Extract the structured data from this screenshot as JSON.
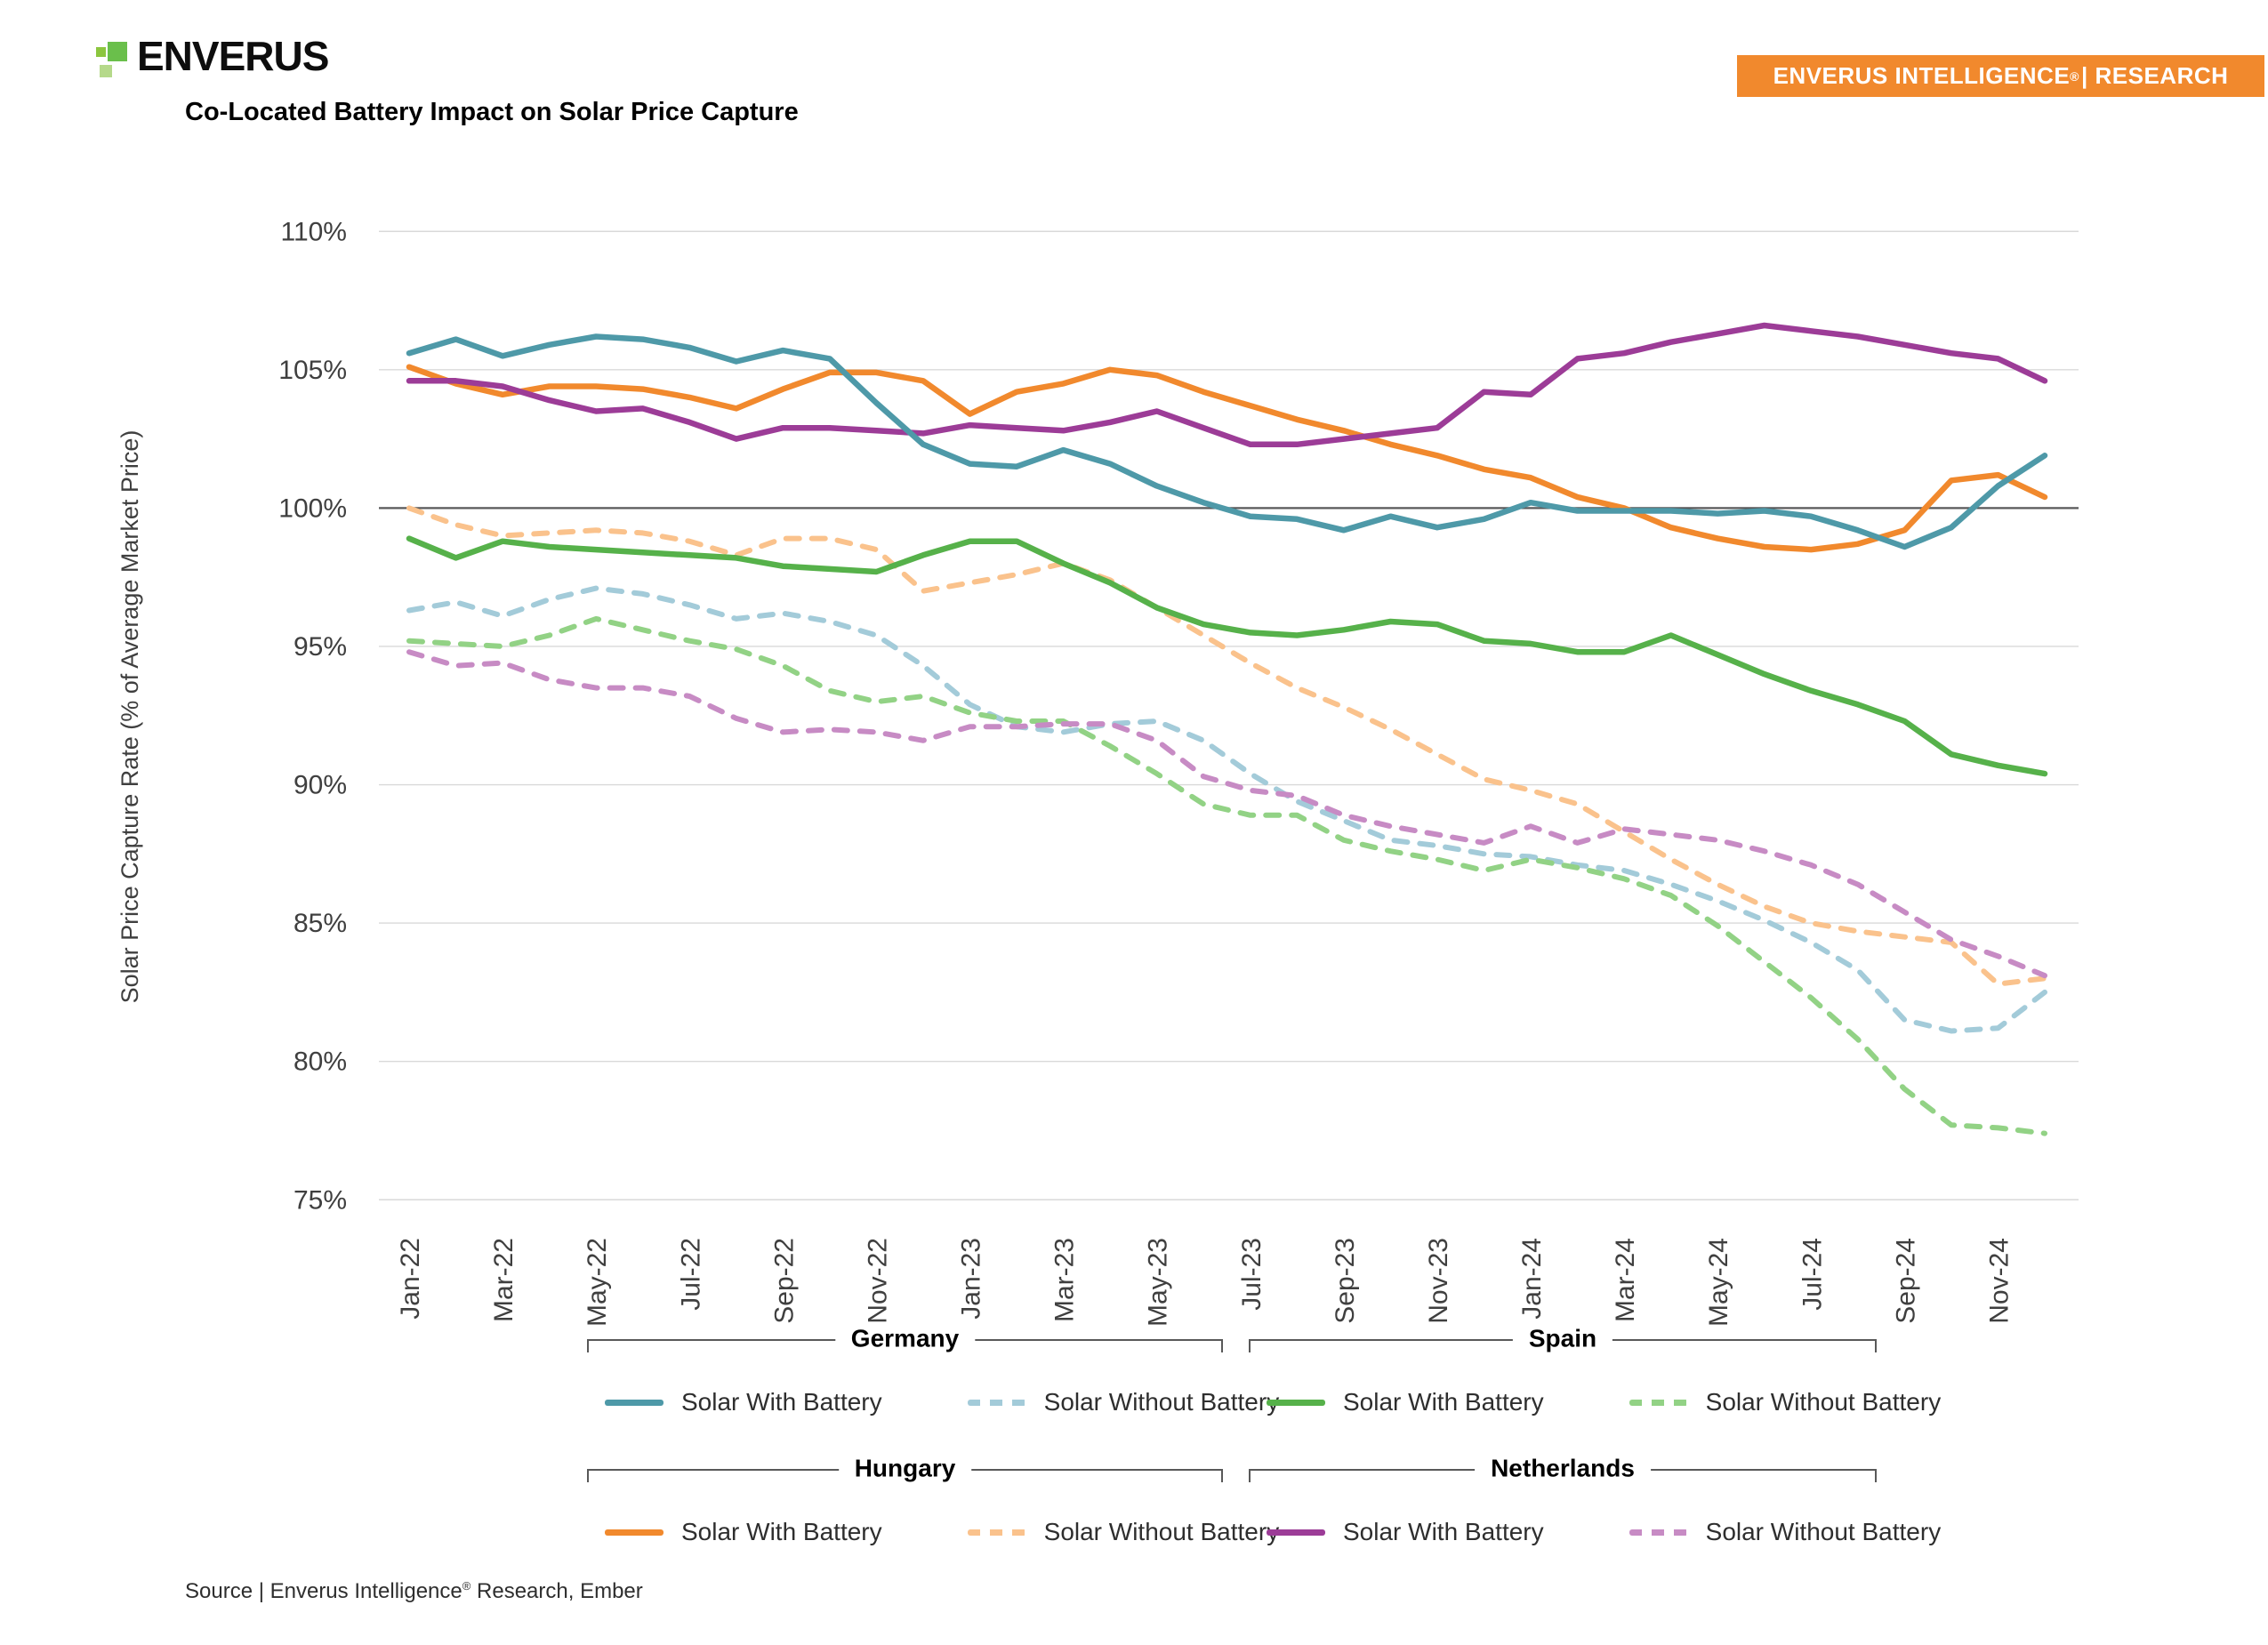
{
  "header": {
    "logo_text": "ENVERUS",
    "badge": {
      "text_main": "ENVERUS INTELLIGENCE",
      "text_reg": "®",
      "text_suffix": " | RESEARCH",
      "bg_color": "#F1892D"
    }
  },
  "chart_data": {
    "type": "line",
    "title": "Co-Located Battery Impact on Solar Price Capture",
    "xlabel": "",
    "ylabel": "Solar Price Capture Rate (% of Average Market Price)",
    "ylim": [
      75,
      110
    ],
    "y_ticks": [
      110,
      105,
      100,
      95,
      90,
      85,
      80,
      75
    ],
    "y_tick_suffix": "%",
    "grid": true,
    "baseline_value": 100,
    "legend_position": "bottom",
    "x_tick_step": 2,
    "x": [
      "Jan-22",
      "Feb-22",
      "Mar-22",
      "Apr-22",
      "May-22",
      "Jun-22",
      "Jul-22",
      "Aug-22",
      "Sep-22",
      "Oct-22",
      "Nov-22",
      "Dec-22",
      "Jan-23",
      "Feb-23",
      "Mar-23",
      "Apr-23",
      "May-23",
      "Jun-23",
      "Jul-23",
      "Aug-23",
      "Sep-23",
      "Oct-23",
      "Nov-23",
      "Dec-23",
      "Jan-24",
      "Feb-24",
      "Mar-24",
      "Apr-24",
      "May-24",
      "Jun-24",
      "Jul-24",
      "Aug-24",
      "Sep-24",
      "Oct-24",
      "Nov-24",
      "Dec-24"
    ],
    "series": [
      {
        "name": "Germany Solar With Battery",
        "country": "Germany",
        "dash": false,
        "color": "#4E99A8",
        "values": [
          105.6,
          106.1,
          105.5,
          105.9,
          106.2,
          106.1,
          105.8,
          105.3,
          105.7,
          105.4,
          103.8,
          102.3,
          101.6,
          101.5,
          102.1,
          101.6,
          100.8,
          100.2,
          99.7,
          99.6,
          99.2,
          99.7,
          99.3,
          99.6,
          100.2,
          99.9,
          99.9,
          99.9,
          99.8,
          99.9,
          99.7,
          99.2,
          98.6,
          99.3,
          100.8,
          101.9
        ]
      },
      {
        "name": "Germany Solar Without Battery",
        "country": "Germany",
        "dash": true,
        "color": "#A3CBD9",
        "values": [
          96.3,
          96.6,
          96.1,
          96.7,
          97.1,
          96.9,
          96.5,
          96.0,
          96.2,
          95.9,
          95.4,
          94.3,
          92.9,
          92.1,
          91.9,
          92.2,
          92.3,
          91.6,
          90.4,
          89.4,
          88.7,
          88.0,
          87.8,
          87.5,
          87.4,
          87.1,
          86.9,
          86.4,
          85.8,
          85.1,
          84.3,
          83.3,
          81.5,
          81.1,
          81.2,
          82.5
        ]
      },
      {
        "name": "Spain Solar With Battery",
        "country": "Spain",
        "dash": false,
        "color": "#56B14A",
        "values": [
          98.9,
          98.2,
          98.8,
          98.6,
          98.5,
          98.4,
          98.3,
          98.2,
          97.9,
          97.8,
          97.7,
          98.3,
          98.8,
          98.8,
          98.0,
          97.3,
          96.4,
          95.8,
          95.5,
          95.4,
          95.6,
          95.9,
          95.8,
          95.2,
          95.1,
          94.8,
          94.8,
          95.4,
          94.7,
          94.0,
          93.4,
          92.9,
          92.3,
          91.1,
          90.7,
          90.4
        ]
      },
      {
        "name": "Spain Solar Without Battery",
        "country": "Spain",
        "dash": true,
        "color": "#92D285",
        "values": [
          95.2,
          95.1,
          95.0,
          95.4,
          96.0,
          95.6,
          95.2,
          94.9,
          94.3,
          93.4,
          93.0,
          93.2,
          92.6,
          92.3,
          92.3,
          91.4,
          90.4,
          89.3,
          88.9,
          88.9,
          88.0,
          87.6,
          87.3,
          86.9,
          87.3,
          87.0,
          86.6,
          86.0,
          84.9,
          83.6,
          82.3,
          80.8,
          79.0,
          77.7,
          77.6,
          77.4
        ]
      },
      {
        "name": "Hungary Solar With Battery",
        "country": "Hungary",
        "dash": false,
        "color": "#F1892D",
        "values": [
          105.1,
          104.5,
          104.1,
          104.4,
          104.4,
          104.3,
          104.0,
          103.6,
          104.3,
          104.9,
          104.9,
          104.6,
          103.4,
          104.2,
          104.5,
          105.0,
          104.8,
          104.2,
          103.7,
          103.2,
          102.8,
          102.3,
          101.9,
          101.4,
          101.1,
          100.4,
          100.0,
          99.3,
          98.9,
          98.6,
          98.5,
          98.7,
          99.2,
          101.0,
          101.2,
          100.4
        ]
      },
      {
        "name": "Hungary Solar Without Battery",
        "country": "Hungary",
        "dash": true,
        "color": "#FAC28C",
        "values": [
          100.0,
          99.4,
          99.0,
          99.1,
          99.2,
          99.1,
          98.8,
          98.3,
          98.9,
          98.9,
          98.5,
          97.0,
          97.3,
          97.6,
          98.0,
          97.4,
          96.4,
          95.4,
          94.4,
          93.5,
          92.8,
          92.0,
          91.1,
          90.2,
          89.8,
          89.3,
          88.3,
          87.3,
          86.4,
          85.6,
          85.0,
          84.7,
          84.5,
          84.3,
          82.8,
          83.0
        ]
      },
      {
        "name": "Netherlands Solar With Battery",
        "country": "Netherlands",
        "dash": false,
        "color": "#9C3C97",
        "values": [
          104.6,
          104.6,
          104.4,
          103.9,
          103.5,
          103.6,
          103.1,
          102.5,
          102.9,
          102.9,
          102.8,
          102.7,
          103.0,
          102.9,
          102.8,
          103.1,
          103.5,
          102.9,
          102.3,
          102.3,
          102.5,
          102.7,
          102.9,
          104.2,
          104.1,
          105.4,
          105.6,
          106.0,
          106.3,
          106.6,
          106.4,
          106.2,
          105.9,
          105.6,
          105.4,
          104.6
        ]
      },
      {
        "name": "Netherlands Solar Without Battery",
        "country": "Netherlands",
        "dash": true,
        "color": "#C78BC4",
        "values": [
          94.8,
          94.3,
          94.4,
          93.8,
          93.5,
          93.5,
          93.2,
          92.4,
          91.9,
          92.0,
          91.9,
          91.6,
          92.1,
          92.1,
          92.2,
          92.2,
          91.6,
          90.3,
          89.8,
          89.6,
          88.9,
          88.5,
          88.2,
          87.9,
          88.5,
          87.9,
          88.4,
          88.2,
          88.0,
          87.6,
          87.1,
          86.4,
          85.4,
          84.4,
          83.8,
          83.1
        ]
      }
    ]
  },
  "legend": {
    "groups": [
      {
        "title": "Germany",
        "entries": [
          {
            "label": "Solar With Battery",
            "series": 0
          },
          {
            "label": "Solar Without Battery",
            "series": 1
          }
        ]
      },
      {
        "title": "Spain",
        "entries": [
          {
            "label": "Solar With Battery",
            "series": 2
          },
          {
            "label": "Solar Without Battery",
            "series": 3
          }
        ]
      },
      {
        "title": "Hungary",
        "entries": [
          {
            "label": "Solar With Battery",
            "series": 4
          },
          {
            "label": "Solar Without Battery",
            "series": 5
          }
        ]
      },
      {
        "title": "Netherlands",
        "entries": [
          {
            "label": "Solar With Battery",
            "series": 6
          },
          {
            "label": "Solar Without Battery",
            "series": 7
          }
        ]
      }
    ]
  },
  "source": {
    "prefix": "Source | Enverus Intelligence",
    "reg": "®",
    "suffix": " Research, Ember"
  }
}
